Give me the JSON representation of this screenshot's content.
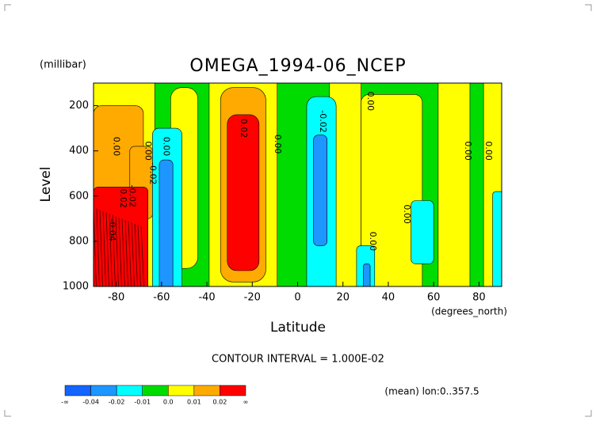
{
  "chart_data": {
    "type": "contour",
    "title": "OMEGA_1994-06_NCEP",
    "y_unit": "(millibar)",
    "y_label": "Level",
    "x_label": "Latitude",
    "x_unit": "(degrees_north)",
    "subtitle": "CONTOUR INTERVAL = 1.000E-02",
    "footnote": "(mean) lon:0..357.5",
    "xlim": [
      -90,
      90
    ],
    "xticks": [
      -80,
      -60,
      -40,
      -20,
      0,
      20,
      40,
      60,
      80
    ],
    "ylim": [
      1000,
      100
    ],
    "yticks": [
      200,
      400,
      600,
      800,
      1000
    ],
    "colorbar": {
      "colors": [
        "#1464ff",
        "#1e96ff",
        "#00ffff",
        "#00dc00",
        "#ffff00",
        "#ffaa00",
        "#ff0000"
      ],
      "labels": [
        "-∞",
        "-0.04",
        "-0.02",
        "-0.01",
        "0.0",
        "0.01",
        "0.02",
        "∞"
      ]
    },
    "contour_labels": [
      "0.00",
      "-0.02",
      "0.02",
      "-0.04",
      "0.00",
      "-0.02",
      "0.00",
      "0.02",
      "0.00",
      "-0.02",
      "0.00",
      "0.00",
      "0.00",
      "0.00",
      "0.00"
    ]
  }
}
